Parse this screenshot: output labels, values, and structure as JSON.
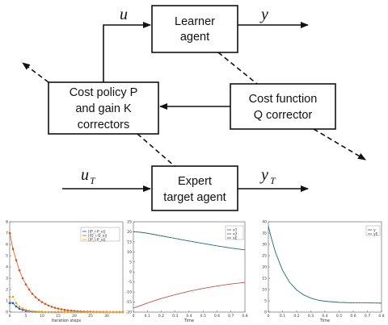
{
  "diagram": {
    "learner_box": {
      "line1": "Learner",
      "line2": "agent"
    },
    "cost_policy_box": {
      "line1": "Cost policy P",
      "line2": "and gain K",
      "line3": "correctors"
    },
    "cost_function_box": {
      "line1": "Cost function",
      "line2": "Q corrector"
    },
    "expert_box": {
      "line1": "Expert",
      "line2": "target agent"
    },
    "signal_u": "u",
    "signal_y": "y",
    "signal_uT_base": "u",
    "signal_uT_sub": "T",
    "signal_yT_base": "y",
    "signal_yT_sub": "T"
  },
  "chart_data": [
    {
      "type": "line",
      "xlabel": "Iteration steps",
      "ylabel": "",
      "xlim": [
        0,
        35
      ],
      "ylim": [
        0,
        8
      ],
      "x_ticks": [
        0,
        5,
        10,
        15,
        20,
        25,
        30
      ],
      "y_ticks": [
        0,
        1,
        2,
        3,
        4,
        5,
        6,
        7,
        8
      ],
      "x": [
        0,
        1,
        2,
        3,
        4,
        5,
        6,
        7,
        8,
        9,
        10,
        11,
        12,
        13,
        14,
        15,
        16,
        17,
        18,
        19,
        20,
        21,
        22,
        23,
        24,
        25,
        26,
        27,
        28,
        29,
        30,
        31,
        32,
        33,
        34,
        35
      ],
      "legend": [
        "||P_i-P_e||",
        "||Q_i-Q_e||",
        "||P_i-P_e||"
      ],
      "series": [
        {
          "color": "#1f4fbf",
          "marker": "circle",
          "values": [
            0.8,
            0.8,
            0.5,
            0.3,
            0.2,
            0.12,
            0.08,
            0.05,
            0.03,
            0.02,
            0.01,
            0,
            0,
            0,
            0,
            0,
            0,
            0,
            0,
            0,
            0,
            0,
            0,
            0,
            0,
            0,
            0,
            0,
            0,
            0,
            0,
            0,
            0,
            0,
            0,
            0
          ]
        },
        {
          "color": "#d9531e",
          "marker": "circle",
          "values": [
            7.0,
            5.6,
            4.6,
            3.7,
            3.0,
            2.45,
            2.0,
            1.62,
            1.32,
            1.08,
            0.88,
            0.72,
            0.58,
            0.47,
            0.38,
            0.31,
            0.25,
            0.2,
            0.16,
            0.13,
            0.1,
            0.08,
            0.06,
            0.05,
            0.04,
            0.03,
            0.02,
            0.02,
            0.01,
            0.01,
            0,
            0,
            0,
            0,
            0,
            0
          ]
        },
        {
          "color": "#e8a317",
          "marker": "circle",
          "values": [
            1.35,
            1.35,
            0.8,
            0.5,
            0.32,
            0.2,
            0.12,
            0.08,
            0.05,
            0.03,
            0.02,
            0.01,
            0,
            0,
            0,
            0,
            0,
            0,
            0,
            0,
            0,
            0,
            0,
            0,
            0,
            0,
            0,
            0,
            0,
            0,
            0,
            0,
            0,
            0,
            0,
            0
          ]
        }
      ]
    },
    {
      "type": "line",
      "xlabel": "Time",
      "ylabel": "",
      "xlim": [
        0,
        0.8
      ],
      "ylim": [
        -20,
        25
      ],
      "x_ticks": [
        0,
        0.1,
        0.2,
        0.3,
        0.4,
        0.5,
        0.6,
        0.7,
        0.8
      ],
      "x_tick_labels": [
        "0",
        "0.1",
        "0.2",
        "0.3",
        "0.4",
        "0.5",
        "0.6",
        "0.7",
        "0.8"
      ],
      "y_ticks": [
        -20,
        -15,
        -10,
        -5,
        0,
        5,
        10,
        15,
        20,
        25
      ],
      "legend": [
        "x1",
        "x2",
        "xE"
      ],
      "series": [
        {
          "color": "#2a7a2a",
          "x": [
            0,
            0.05,
            0.1,
            0.2,
            0.3,
            0.4,
            0.5,
            0.6,
            0.7,
            0.8
          ],
          "values": [
            20,
            19.8,
            19.3,
            18,
            16.7,
            15.4,
            14.2,
            13,
            11.9,
            11
          ]
        },
        {
          "color": "#c0392b",
          "x": [
            0,
            0.05,
            0.1,
            0.2,
            0.3,
            0.4,
            0.5,
            0.6,
            0.7,
            0.8
          ],
          "values": [
            -18,
            -16.8,
            -15.5,
            -13.2,
            -11.3,
            -9.6,
            -8.2,
            -7,
            -6,
            -5.2
          ]
        },
        {
          "color": "#1f4fbf",
          "x": [
            0,
            0.05,
            0.1,
            0.2,
            0.3,
            0.4,
            0.5,
            0.6,
            0.7,
            0.8
          ],
          "values": [
            20,
            19.8,
            19.3,
            18,
            16.7,
            15.4,
            14.2,
            13,
            11.9,
            11
          ]
        }
      ]
    },
    {
      "type": "line",
      "xlabel": "Time",
      "ylabel": "",
      "xlim": [
        0,
        0.8
      ],
      "ylim": [
        0,
        40
      ],
      "x_ticks": [
        0,
        0.1,
        0.2,
        0.3,
        0.4,
        0.5,
        0.6,
        0.7,
        0.8
      ],
      "x_tick_labels": [
        "0",
        "0.1",
        "0.2",
        "0.3",
        "0.4",
        "0.5",
        "0.6",
        "0.7",
        "0.8"
      ],
      "y_ticks": [
        0,
        5,
        10,
        15,
        20,
        25,
        30,
        35,
        40
      ],
      "legend": [
        "y",
        "yE"
      ],
      "series": [
        {
          "color": "#1f4fbf",
          "x": [
            0,
            0.02,
            0.05,
            0.1,
            0.15,
            0.2,
            0.25,
            0.3,
            0.35,
            0.4,
            0.5,
            0.6,
            0.7,
            0.8
          ],
          "values": [
            38,
            33,
            26.5,
            18.5,
            13.2,
            9.8,
            7.6,
            6.2,
            5.3,
            4.8,
            4.3,
            4.1,
            4.05,
            4
          ]
        },
        {
          "color": "#2a7a2a",
          "x": [
            0,
            0.02,
            0.05,
            0.1,
            0.15,
            0.2,
            0.25,
            0.3,
            0.35,
            0.4,
            0.5,
            0.6,
            0.7,
            0.8
          ],
          "values": [
            38,
            33,
            26.5,
            18.5,
            13.2,
            9.8,
            7.6,
            6.2,
            5.3,
            4.8,
            4.3,
            4.1,
            4.05,
            4
          ]
        }
      ]
    }
  ]
}
